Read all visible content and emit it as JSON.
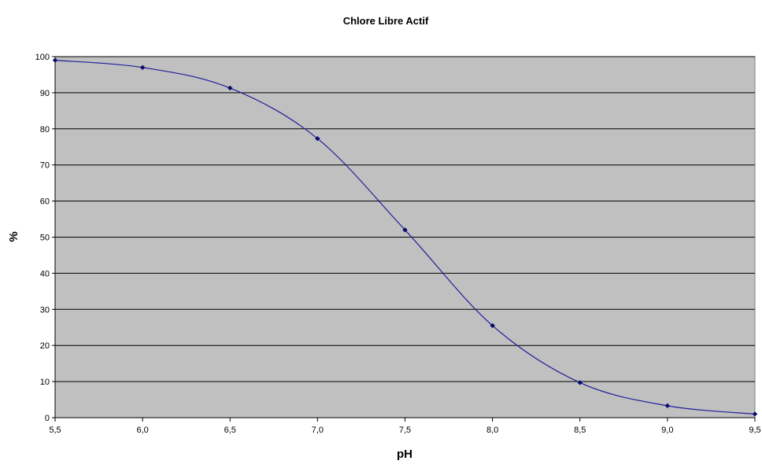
{
  "chart_data": {
    "type": "line",
    "title": "Chlore Libre Actif",
    "xlabel": "pH",
    "ylabel": "%",
    "x": [
      5.5,
      6.0,
      6.5,
      7.0,
      7.5,
      8.0,
      8.5,
      9.0,
      9.5
    ],
    "x_tick_labels": [
      "5,5",
      "6,0",
      "6,5",
      "7,0",
      "7,5",
      "8,0",
      "8,5",
      "9,0",
      "9,5"
    ],
    "y_tick_labels": [
      "0",
      "10",
      "20",
      "30",
      "40",
      "50",
      "60",
      "70",
      "80",
      "90",
      "100"
    ],
    "y_ticks": [
      0,
      10,
      20,
      30,
      40,
      50,
      60,
      70,
      80,
      90,
      100
    ],
    "xlim": [
      5.5,
      9.5
    ],
    "ylim": [
      0,
      100
    ],
    "series": [
      {
        "values": [
          99.0,
          97.0,
          91.3,
          77.3,
          52.0,
          25.5,
          9.7,
          3.3,
          1.0
        ]
      }
    ],
    "grid": "horizontal",
    "legend": "none",
    "colors": {
      "plot_background": "#c0c0c0",
      "grid": "#000000",
      "line": "#1f1f9a",
      "marker": "#0a0a6e"
    }
  }
}
